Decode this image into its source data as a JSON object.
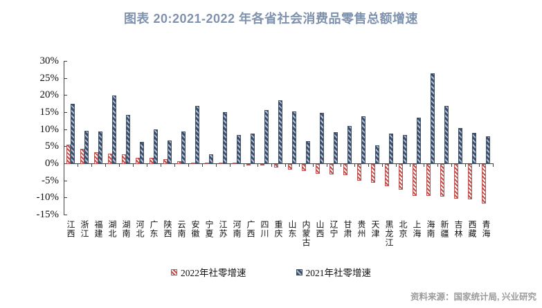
{
  "title": "图表 20:2021-2022 年各省社会消费品零售总额增速",
  "chart_data": {
    "type": "bar",
    "categories": [
      "江西",
      "浙江",
      "福建",
      "湖北",
      "湖南",
      "河北",
      "广东",
      "陕西",
      "云南",
      "安徽",
      "宁夏",
      "江苏",
      "河南",
      "广西",
      "四川",
      "重庆",
      "山东",
      "内蒙古",
      "山西",
      "辽宁",
      "甘肃",
      "贵州",
      "天津",
      "黑龙江",
      "北京",
      "上海",
      "海南",
      "新疆",
      "吉林",
      "西藏",
      "青海"
    ],
    "series": [
      {
        "name": "2022年社零增速",
        "color": "#c0504d",
        "fill": "#ffffff",
        "values": [
          5.4,
          4.2,
          3.3,
          2.9,
          2.7,
          1.7,
          1.6,
          1.3,
          0.6,
          0.3,
          0.2,
          0.1,
          0.0,
          -0.1,
          -0.3,
          -0.9,
          -1.4,
          -1.8,
          -2.6,
          -2.8,
          -3.0,
          -4.6,
          -5.2,
          -6.3,
          -7.2,
          -9.1,
          -9.2,
          -9.4,
          -9.9,
          -10.2,
          -11.3
        ]
      },
      {
        "name": "2021年社零增速",
        "color": "#3d4e68",
        "fill": "#aebdd0",
        "values": [
          17.4,
          9.5,
          9.3,
          19.8,
          14.2,
          6.3,
          9.9,
          6.7,
          9.4,
          16.9,
          2.6,
          15.1,
          8.3,
          8.8,
          15.7,
          18.5,
          15.2,
          6.4,
          14.8,
          9.2,
          11.0,
          13.8,
          5.2,
          8.8,
          8.4,
          13.3,
          26.3,
          16.9,
          10.4,
          8.9,
          7.9
        ]
      }
    ],
    "ylim": [
      -15,
      30
    ],
    "ytick_step": 5,
    "ytick_labels": [
      "30%",
      "25%",
      "20%",
      "15%",
      "10%",
      "5%",
      "0%",
      "-5%",
      "-10%",
      "-15%"
    ],
    "grid": false,
    "legend_position": "bottom",
    "xlabel": "",
    "ylabel": ""
  },
  "footer": {
    "source": "资料来源：国家统计局, 兴业研究"
  }
}
